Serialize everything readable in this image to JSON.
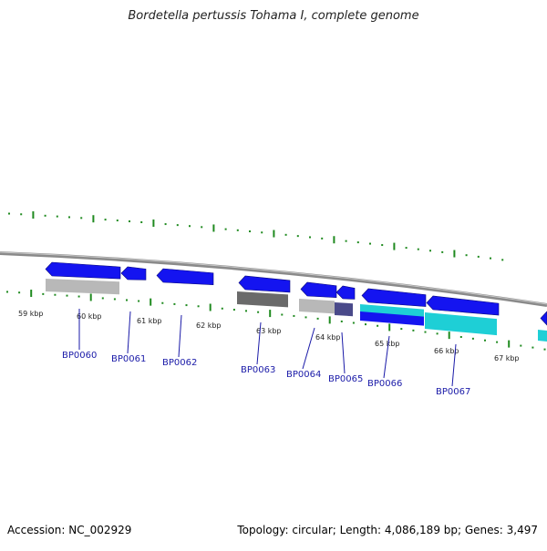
{
  "title": "Bordetella pertussis Tohama I, complete genome",
  "footer": {
    "accession": "Accession: NC_002929",
    "summary": "Topology: circular; Length: 4,086,189 bp; Genes: 3,497"
  },
  "colors": {
    "tick": "#1f8a1f",
    "backbone": "#8a8a8a",
    "cds_blue": "#1414f0",
    "cds_cyan": "#1ecfd6",
    "gene_gray": "#b8b8b8",
    "gene_dark": "#6a6a6a",
    "gene_slate": "#4a4a8a",
    "label": "#1a1aa8"
  },
  "scale": {
    "kbp_labels": [
      "59 kbp",
      "60 kbp",
      "61 kbp",
      "62 kbp",
      "63 kbp",
      "64 kbp",
      "65 kbp",
      "66 kbp",
      "67 kbp"
    ]
  },
  "genes": [
    {
      "name": "BP0060"
    },
    {
      "name": "BP0061"
    },
    {
      "name": "BP0062"
    },
    {
      "name": "BP0063"
    },
    {
      "name": "BP0064"
    },
    {
      "name": "BP0065"
    },
    {
      "name": "BP0066"
    },
    {
      "name": "BP0067"
    }
  ]
}
